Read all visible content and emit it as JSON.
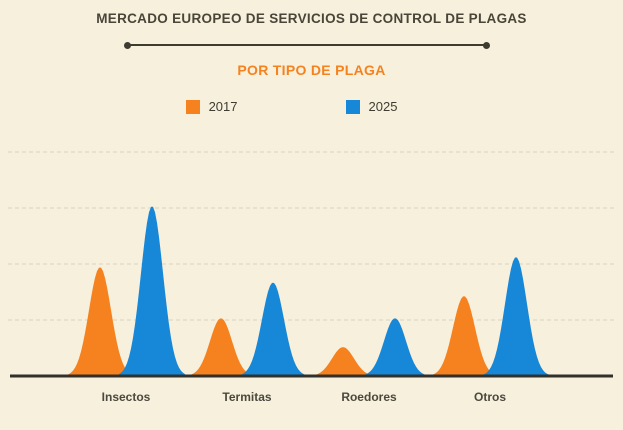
{
  "page": {
    "background": "#F6F0DD"
  },
  "header": {
    "title": "MERCADO EUROPEO DE SERVICIOS DE CONTROL DE PLAGAS",
    "subtitle": "POR TIPO DE PLAGA"
  },
  "legend": [
    {
      "label": "2017",
      "color": "#F5821F"
    },
    {
      "label": "2025",
      "color": "#1787D8"
    }
  ],
  "chart_data": {
    "type": "area",
    "title": "MERCADO EUROPEO DE SERVICIOS DE CONTROL DE PLAGAS",
    "subtitle": "POR TIPO DE PLAGA",
    "categories": [
      "Insectos",
      "Termitas",
      "Roedores",
      "Otros"
    ],
    "series": [
      {
        "name": "2017",
        "color": "#F5821F",
        "values": [
          64,
          34,
          17,
          47
        ]
      },
      {
        "name": "2025",
        "color": "#1787D8",
        "values": [
          100,
          55,
          34,
          70
        ]
      }
    ],
    "ylim": [
      0,
      100
    ],
    "grid": true,
    "legend_position": "top"
  }
}
